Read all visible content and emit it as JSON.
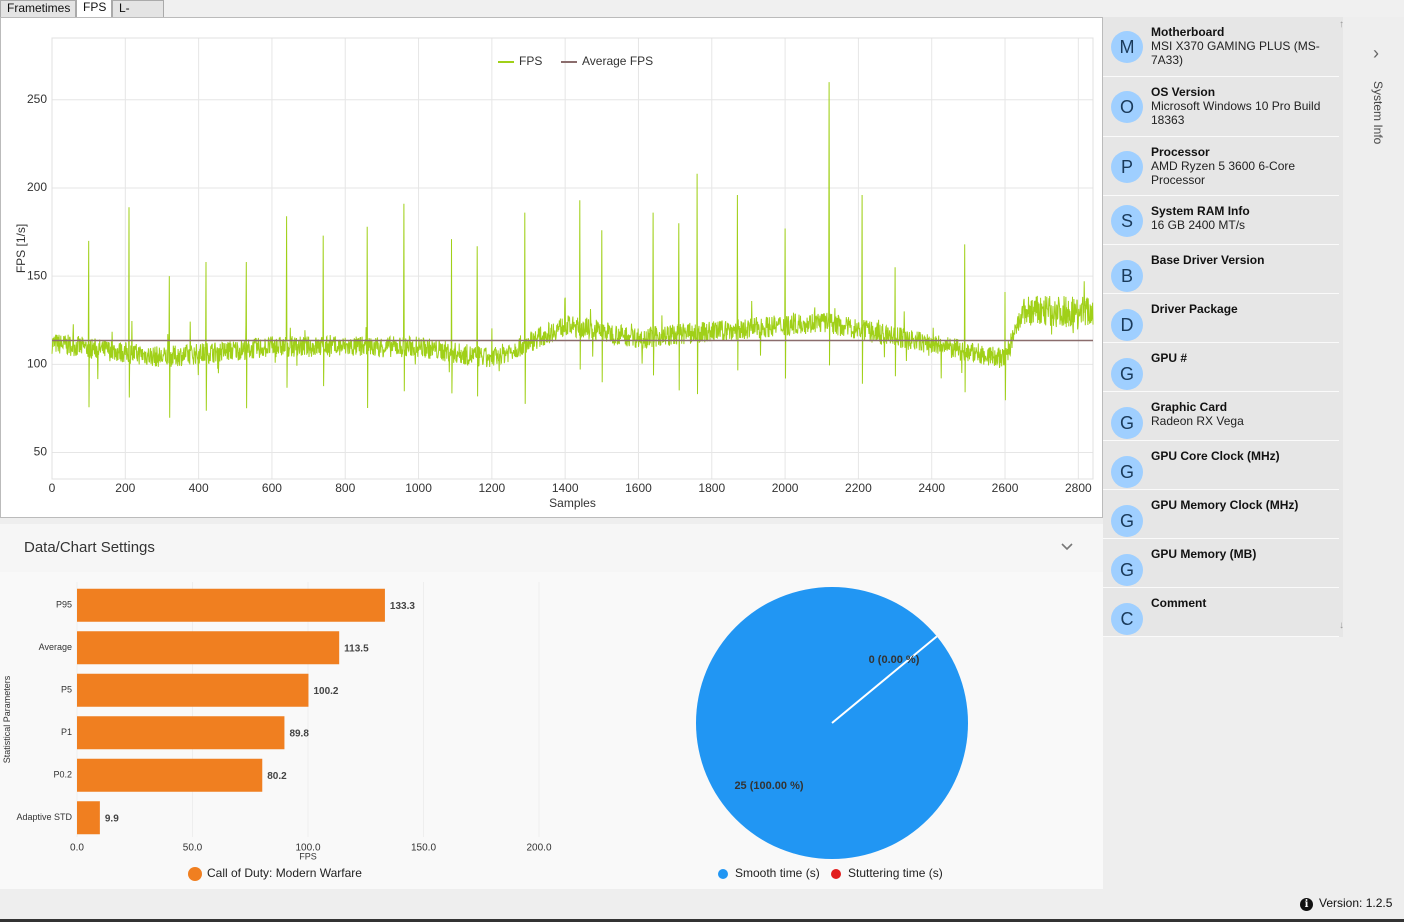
{
  "tabs": [
    {
      "label": "Frametimes"
    },
    {
      "label": "FPS"
    },
    {
      "label": "L-shape"
    }
  ],
  "active_tab": "FPS",
  "fps_chart": {
    "legend": [
      {
        "label": "FPS",
        "color": "#a0d018"
      },
      {
        "label": "Average FPS",
        "color": "#8b6d6d"
      }
    ],
    "ylabel": "FPS [1/s]",
    "xlabel": "Samples",
    "x_ticks": [
      "0",
      "200",
      "400",
      "600",
      "800",
      "1000",
      "1200",
      "1400",
      "1600",
      "1800",
      "2000",
      "2200",
      "2400",
      "2600",
      "2800"
    ],
    "y_ticks": [
      "50",
      "100",
      "150",
      "200",
      "250"
    ]
  },
  "settings": {
    "title": "Data/Chart Settings"
  },
  "bar_chart": {
    "ylabel": "Statistical Parameters",
    "xlabel": "FPS",
    "x_ticks": [
      "0.0",
      "50.0",
      "100.0",
      "150.0",
      "200.0"
    ],
    "legend_label": "Call of Duty: Modern Warfare",
    "bar_color": "#f07f20",
    "value_labels": [
      "133.3",
      "113.5",
      "100.2",
      "89.8",
      "80.2",
      "9.9"
    ],
    "category_labels": [
      "P95",
      "Average",
      "P5",
      "P1",
      "P0.2",
      "Adaptive STD"
    ]
  },
  "pie_chart": {
    "slice_labels": [
      "25 (100.00 %)",
      "0 (0.00 %)"
    ],
    "legend": [
      {
        "label": "Smooth time (s)",
        "color": "#2196f3"
      },
      {
        "label": "Stuttering time (s)",
        "color": "#e21c1c"
      }
    ]
  },
  "chart_data": [
    {
      "type": "line",
      "xlabel": "Samples",
      "ylabel": "FPS [1/s]",
      "xlim": [
        0,
        2840
      ],
      "ylim": [
        35,
        285
      ],
      "grid": true,
      "legend_position": "top-center",
      "series": [
        {
          "name": "FPS",
          "color": "#a0d018",
          "baseline_segments": [
            [
              0,
              112
            ],
            [
              300,
              104
            ],
            [
              600,
              110
            ],
            [
              1000,
              110
            ],
            [
              1200,
              103
            ],
            [
              1400,
              122
            ],
            [
              1600,
              115
            ],
            [
              2100,
              124
            ],
            [
              2600,
              103
            ],
            [
              2650,
              130
            ],
            [
              2840,
              130
            ]
          ],
          "spikes": [
            [
              100,
              170
            ],
            [
              210,
              189
            ],
            [
              320,
              150
            ],
            [
              420,
              158
            ],
            [
              530,
              158
            ],
            [
              640,
              184
            ],
            [
              740,
              173
            ],
            [
              860,
              178
            ],
            [
              960,
              191
            ],
            [
              1090,
              171
            ],
            [
              1160,
              167
            ],
            [
              1290,
              186
            ],
            [
              1440,
              193
            ],
            [
              1500,
              176
            ],
            [
              1640,
              186
            ],
            [
              1710,
              180
            ],
            [
              1760,
              208
            ],
            [
              1870,
              196
            ],
            [
              2000,
              177
            ],
            [
              2120,
              260
            ],
            [
              2210,
              196
            ],
            [
              2300,
              155
            ],
            [
              2490,
              168
            ],
            [
              2600,
              141
            ]
          ]
        },
        {
          "name": "Average FPS",
          "color": "#8b6d6d",
          "values": [
            {
              "x": 0,
              "y": 113.5
            },
            {
              "x": 2840,
              "y": 113.5
            }
          ]
        }
      ]
    },
    {
      "type": "bar",
      "orientation": "horizontal",
      "categories": [
        "P95",
        "Average",
        "P5",
        "P1",
        "P0.2",
        "Adaptive STD"
      ],
      "series": [
        {
          "name": "Call of Duty: Modern Warfare",
          "values": [
            133.3,
            113.5,
            100.2,
            89.8,
            80.2,
            9.9
          ]
        }
      ],
      "xlabel": "FPS",
      "ylabel": "Statistical Parameters",
      "xlim": [
        0,
        200
      ],
      "legend_position": "bottom"
    },
    {
      "type": "pie",
      "labels": [
        "Smooth time (s)",
        "Stuttering time (s)"
      ],
      "values": [
        25,
        0
      ],
      "percent": [
        100.0,
        0.0
      ],
      "legend_position": "bottom"
    }
  ],
  "system_info": {
    "items": [
      {
        "initial": "M",
        "title": "Motherboard",
        "value": "MSI X370 GAMING PLUS (MS-7A33)"
      },
      {
        "initial": "O",
        "title": "OS Version",
        "value": "Microsoft Windows 10 Pro Build 18363"
      },
      {
        "initial": "P",
        "title": "Processor",
        "value": "AMD Ryzen 5 3600 6-Core Processor"
      },
      {
        "initial": "S",
        "title": "System RAM Info",
        "value": "16 GB 2400 MT/s"
      },
      {
        "initial": "B",
        "title": "Base Driver Version",
        "value": ""
      },
      {
        "initial": "D",
        "title": "Driver Package",
        "value": ""
      },
      {
        "initial": "G",
        "title": "GPU #",
        "value": ""
      },
      {
        "initial": "G",
        "title": "Graphic Card",
        "value": "Radeon RX Vega"
      },
      {
        "initial": "G",
        "title": "GPU Core Clock (MHz)",
        "value": ""
      },
      {
        "initial": "G",
        "title": "GPU Memory Clock (MHz)",
        "value": ""
      },
      {
        "initial": "G",
        "title": "GPU Memory (MB)",
        "value": ""
      },
      {
        "initial": "C",
        "title": "Comment",
        "value": ""
      }
    ],
    "rail_label": "System Info"
  },
  "footer": {
    "version": "Version:  1.2.5"
  }
}
